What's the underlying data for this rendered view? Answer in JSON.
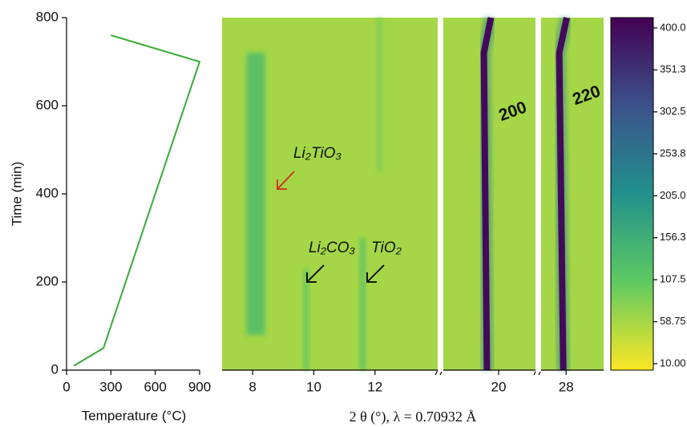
{
  "chart_data": [
    {
      "type": "line",
      "xlabel": "Temperature (°C)",
      "ylabel": "Time (min)",
      "x": [
        50,
        250,
        900,
        300
      ],
      "y": [
        10,
        50,
        700,
        760
      ],
      "color": "#3aaa35",
      "xlim": [
        0,
        900
      ],
      "ylim": [
        0,
        800
      ],
      "xticks": [
        0,
        300,
        600,
        900
      ],
      "yticks": [
        0,
        200,
        400,
        600,
        800
      ]
    },
    {
      "type": "heatmap",
      "xlabel": "2 θ (°), λ = 0.70932  Å",
      "ylim": [
        0,
        800
      ],
      "panels": [
        {
          "xlim": [
            7,
            14.05
          ],
          "xticks": [
            8,
            10,
            12
          ]
        },
        {
          "xlim": [
            18.2,
            21.2
          ],
          "xticks": [
            20
          ]
        },
        {
          "xlim": [
            27.2,
            29.2
          ],
          "xticks": [
            28
          ]
        }
      ],
      "background": 60,
      "bands": [
        {
          "panel": 0,
          "x": 8.1,
          "width": 0.6,
          "y": [
            80,
            720
          ],
          "value": 130
        },
        {
          "panel": 0,
          "x": 9.75,
          "width": 0.15,
          "y": [
            0,
            230
          ],
          "value": 115
        },
        {
          "panel": 0,
          "x": 11.6,
          "width": 0.15,
          "y": [
            0,
            300
          ],
          "value": 125
        },
        {
          "panel": 0,
          "x": 12.15,
          "width": 0.15,
          "y": [
            450,
            800
          ],
          "value": 90
        }
      ],
      "peaks": [
        {
          "panel": 1,
          "name": "200",
          "x": [
            19.62,
            19.52,
            19.75
          ],
          "y": [
            0,
            720,
            800
          ],
          "value": 400
        },
        {
          "panel": 2,
          "name": "220",
          "x": [
            27.91,
            27.78,
            28.02
          ],
          "y": [
            0,
            720,
            800
          ],
          "value": 400
        }
      ],
      "annotations": [
        {
          "text": "Li₂TiO₃",
          "color": "#d42a20"
        },
        {
          "text": "Li₂CO₃",
          "color": "#000000"
        },
        {
          "text": "TiO₂",
          "color": "#000000"
        }
      ],
      "clim": [
        2.5,
        412
      ],
      "cticks": [
        {
          "value": 10,
          "label": "10.00"
        },
        58.75,
        107.5,
        156.3,
        {
          "value": 205,
          "label": "205.0"
        },
        253.8,
        302.5,
        351.3,
        {
          "value": 400,
          "label": "400.0"
        }
      ]
    }
  ]
}
